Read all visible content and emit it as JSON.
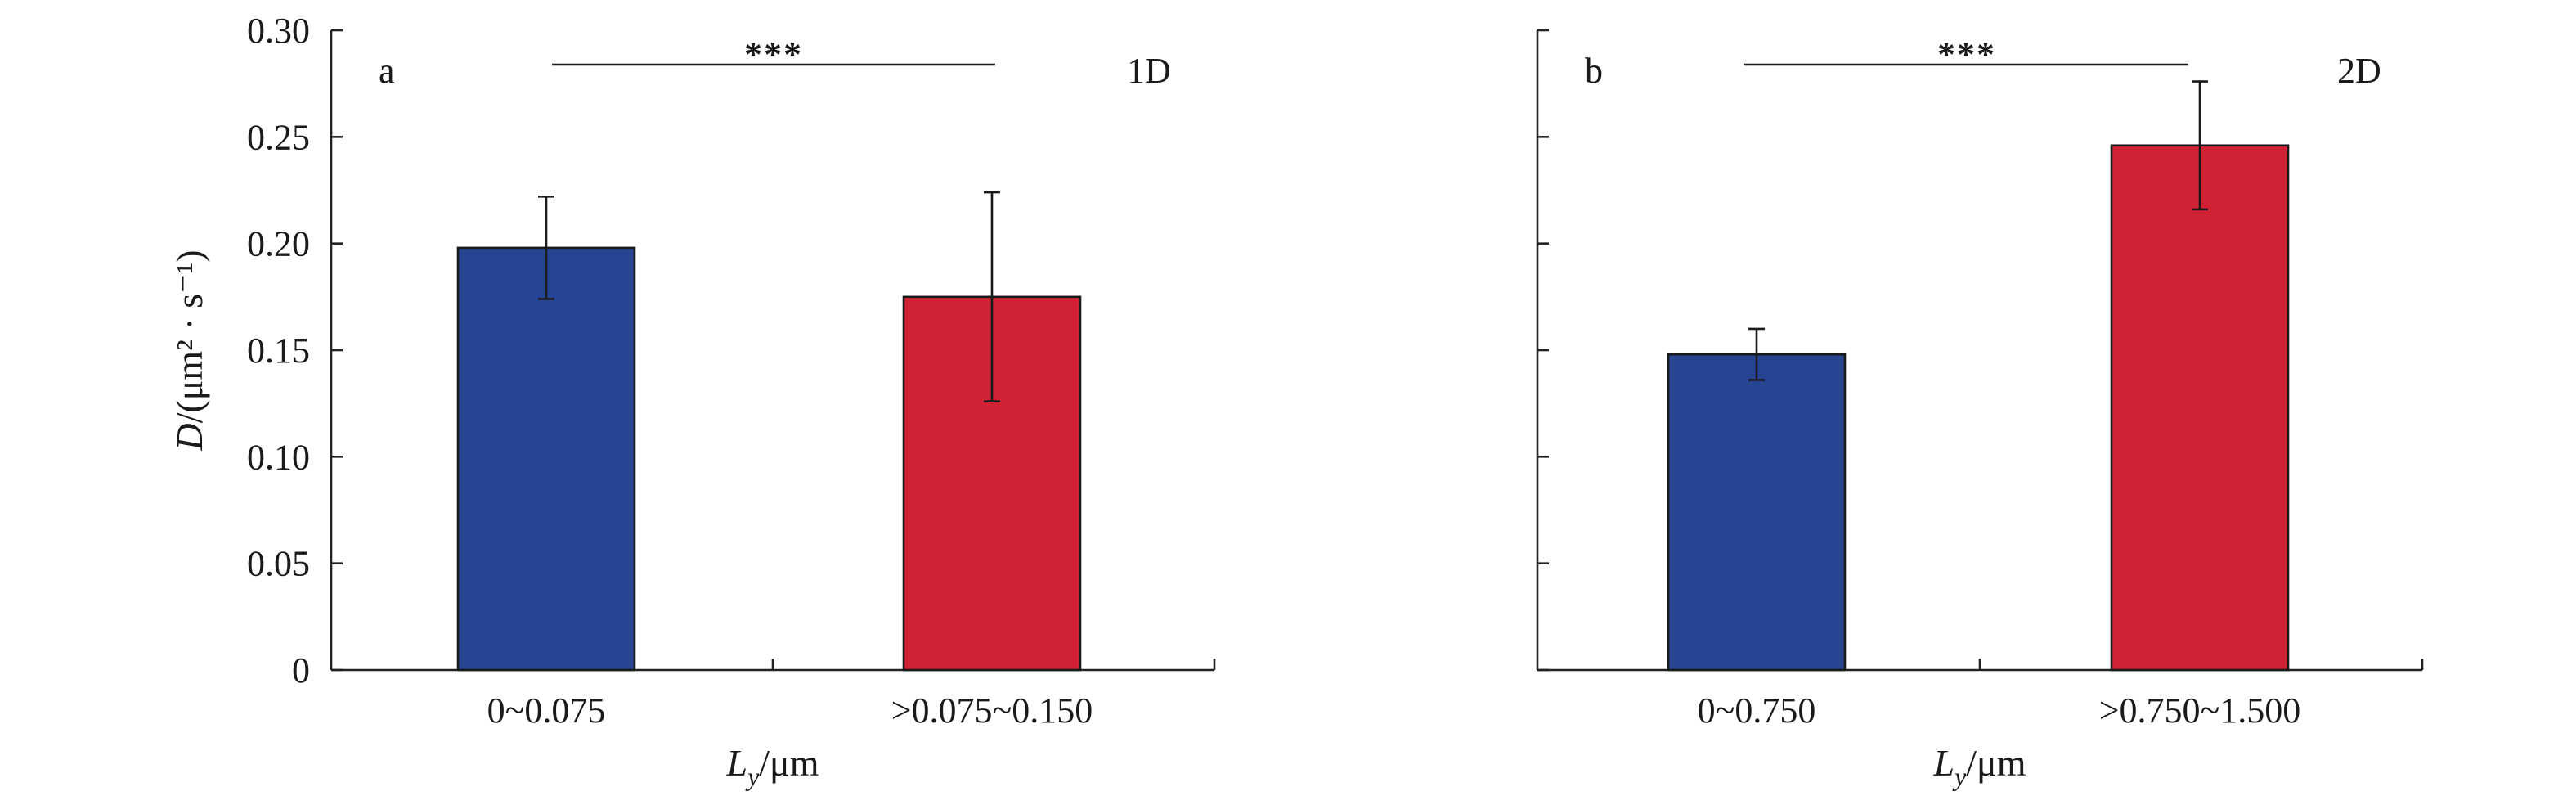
{
  "chart_data": [
    {
      "type": "bar",
      "panel_label": "a",
      "tag": "1D",
      "ylabel_prefix": "D",
      "ylabel_suffix": "/(μm² · s⁻¹)",
      "xlabel_main": "L",
      "xlabel_sub": "y",
      "xlabel_rest": "/μm",
      "ylim": [
        0,
        0.3
      ],
      "yticks": [
        "0",
        "0.05",
        "0.10",
        "0.15",
        "0.20",
        "0.25",
        "0.30"
      ],
      "categories": [
        "0~0.075",
        ">0.075~0.150"
      ],
      "values": [
        0.198,
        0.175
      ],
      "errors": [
        0.024,
        0.049
      ],
      "significance": "***",
      "show_tick_labels": true
    },
    {
      "type": "bar",
      "panel_label": "b",
      "tag": "2D",
      "ylabel_prefix": "",
      "ylabel_suffix": "",
      "xlabel_main": "L",
      "xlabel_sub": "y",
      "xlabel_rest": "/μm",
      "ylim": [
        0,
        0.3
      ],
      "yticks": [
        "",
        "",
        "",
        "",
        "",
        "",
        ""
      ],
      "categories": [
        "0~0.750",
        ">0.750~1.500"
      ],
      "values": [
        0.148,
        0.246
      ],
      "errors": [
        0.012,
        0.03
      ],
      "significance": "***",
      "show_tick_labels": false
    }
  ],
  "colors": {
    "blue": "#264491",
    "red": "#d02234"
  }
}
